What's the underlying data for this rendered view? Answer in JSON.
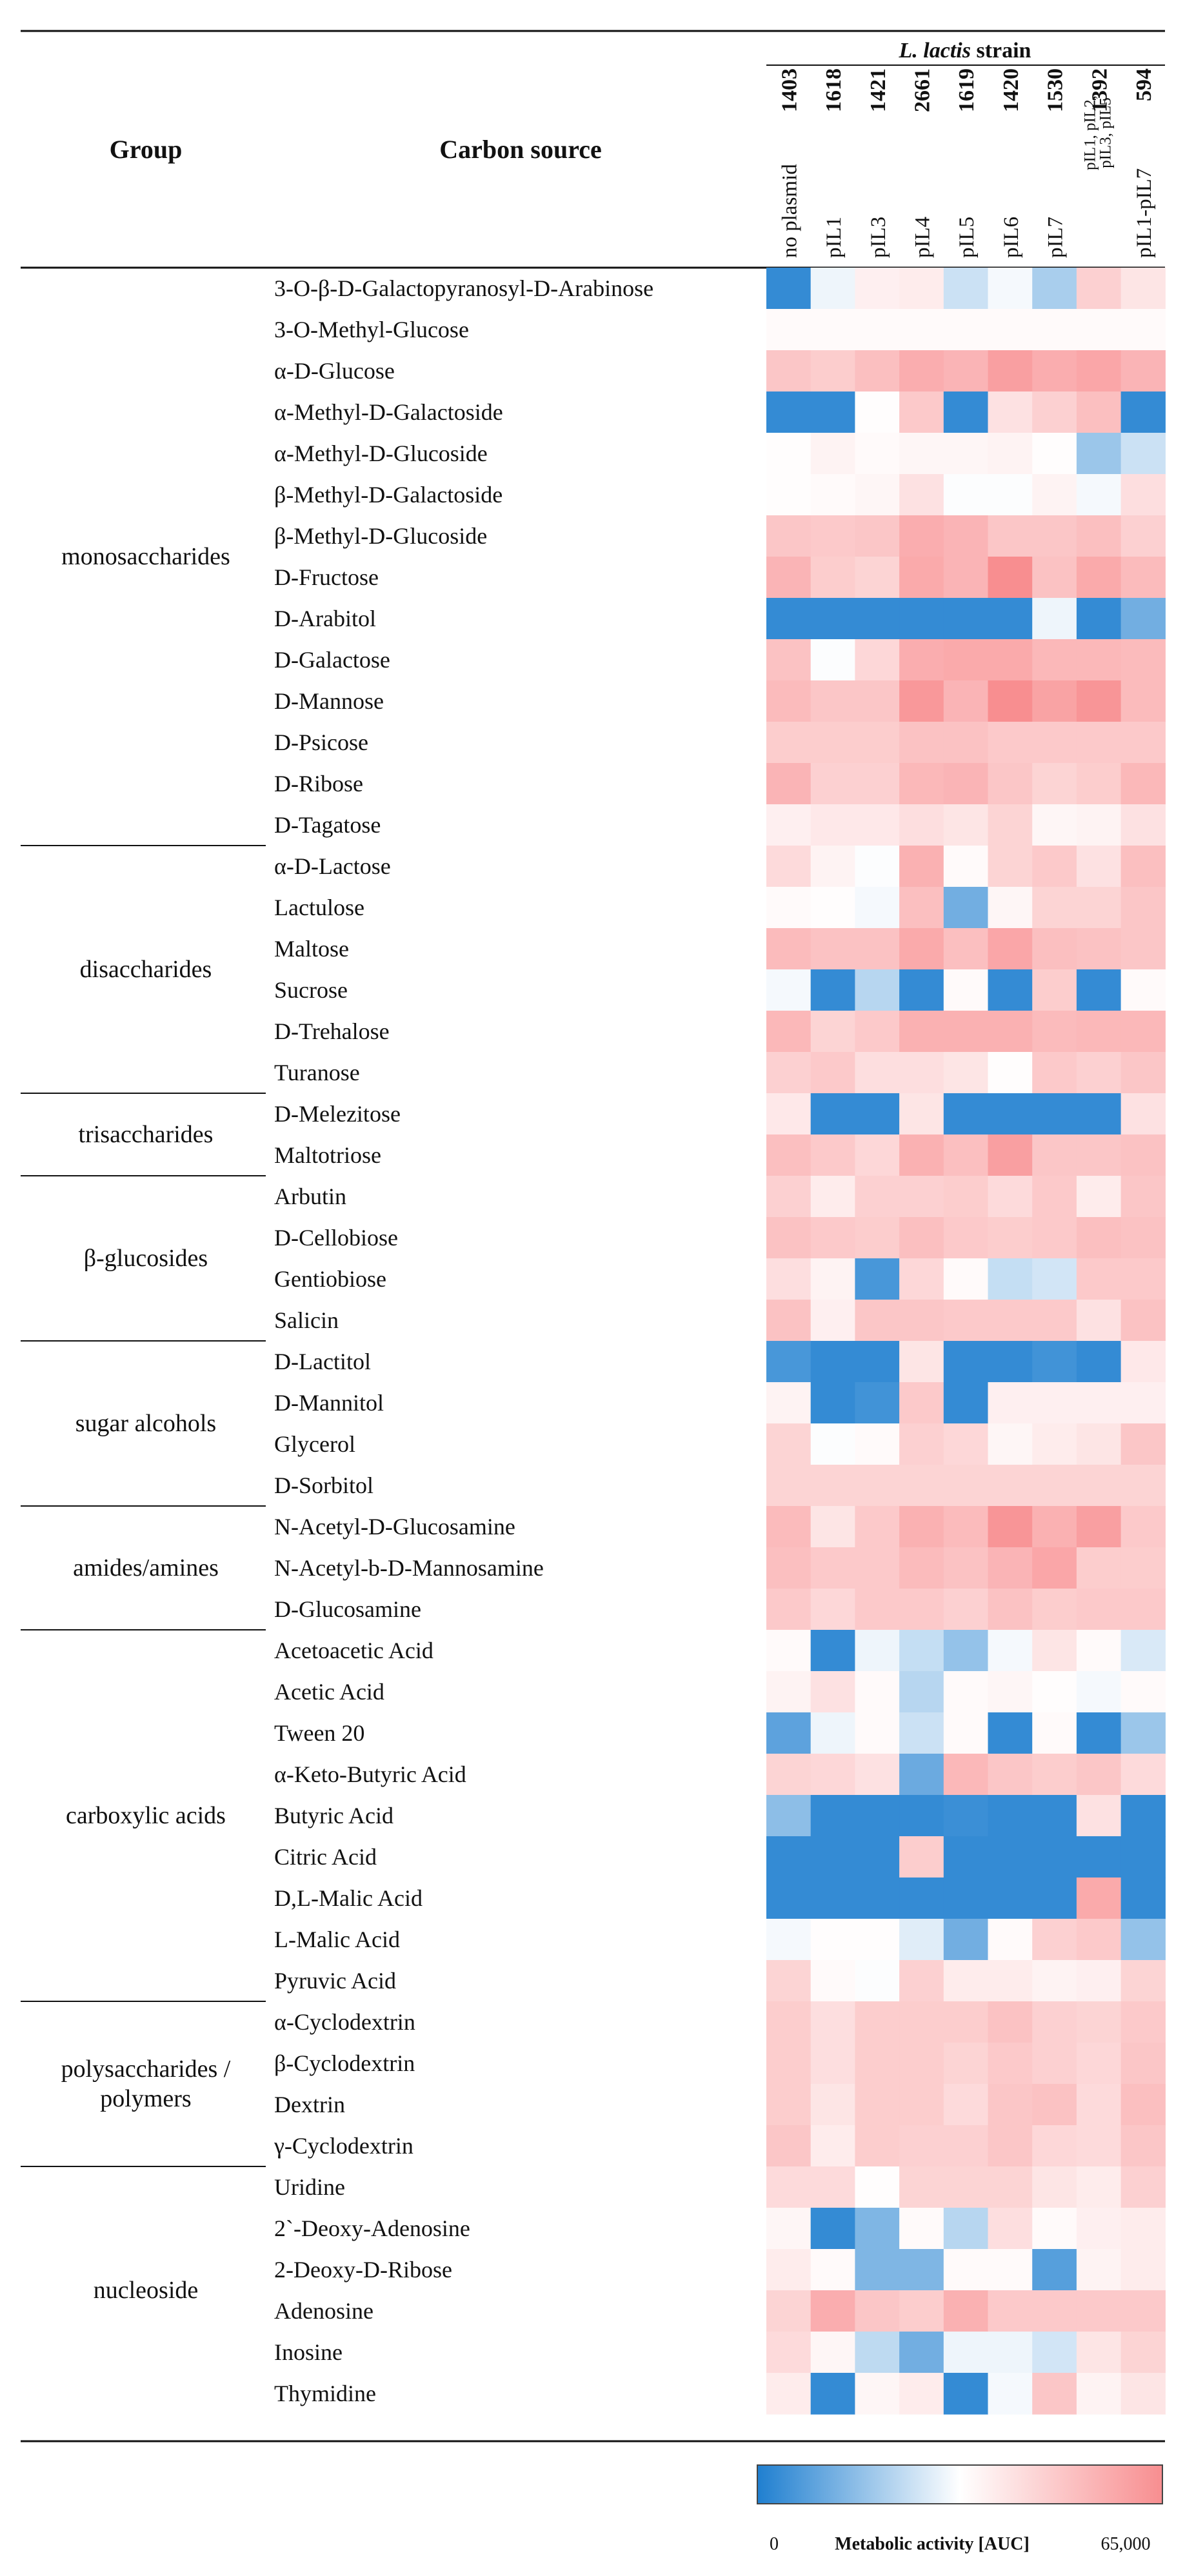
{
  "chart_data": {
    "type": "heatmap",
    "header": {
      "group": "Group",
      "carbon_source": "Carbon source",
      "strain_italic": "L. lactis",
      "strain_suffix": " strain"
    },
    "strains": [
      {
        "id": "1403",
        "plasmid": "no plasmid",
        "small": false
      },
      {
        "id": "1618",
        "plasmid": "pIL1",
        "small": false
      },
      {
        "id": "1421",
        "plasmid": "pIL3",
        "small": false
      },
      {
        "id": "2661",
        "plasmid": "pIL4",
        "small": false
      },
      {
        "id": "1619",
        "plasmid": "pIL5",
        "small": false
      },
      {
        "id": "1420",
        "plasmid": "pIL6",
        "small": false
      },
      {
        "id": "1530",
        "plasmid": "pIL7",
        "small": false
      },
      {
        "id": "1392",
        "plasmid": "pIL1, pIL2, pIL3, pIL5",
        "small": true
      },
      {
        "id": "594",
        "plasmid": "pIL1-pIL7",
        "small": false
      }
    ],
    "groups": [
      {
        "name": "monosaccharides",
        "rows": 14
      },
      {
        "name": "disaccharides",
        "rows": 6
      },
      {
        "name": "trisaccharides",
        "rows": 2
      },
      {
        "name": "β-glucosides",
        "rows": 4
      },
      {
        "name": "sugar alcohols",
        "rows": 4
      },
      {
        "name": "amides/amines",
        "rows": 3
      },
      {
        "name": "carboxylic acids",
        "rows": 9
      },
      {
        "name": "polysaccharides /\npolymers",
        "rows": 4
      },
      {
        "name": "nucleoside",
        "rows": 6
      }
    ],
    "carbon_sources": [
      "3-O-β-D-Galactopyranosyl-D-Arabinose",
      "3-O-Methyl-Glucose",
      "α-D-Glucose",
      "α-Methyl-D-Galactoside",
      "α-Methyl-D-Glucoside",
      "β-Methyl-D-Galactoside",
      "β-Methyl-D-Glucoside",
      "D-Fructose",
      "D-Arabitol",
      "D-Galactose",
      "D-Mannose",
      "D-Psicose",
      "D-Ribose",
      "D-Tagatose",
      "α-D-Lactose",
      "Lactulose",
      "Maltose",
      "Sucrose",
      "D-Trehalose",
      "Turanose",
      "D-Melezitose",
      "Maltotriose",
      "Arbutin",
      "D-Cellobiose",
      "Gentiobiose",
      "Salicin",
      "D-Lactitol",
      "D-Mannitol",
      "Glycerol",
      "D-Sorbitol",
      "N-Acetyl-D-Glucosamine",
      "N-Acetyl-b-D-Mannosamine",
      "D-Glucosamine",
      "Acetoacetic Acid",
      "Acetic Acid",
      "Tween 20",
      "α-Keto-Butyric Acid",
      "Butyric Acid",
      "Citric Acid",
      "D,L-Malic Acid",
      "L-Malic Acid",
      "Pyruvic Acid",
      "α-Cyclodextrin",
      "β-Cyclodextrin",
      "Dextrin",
      "γ-Cyclodextrin",
      "Uridine",
      "2`-Deoxy-Adenosine",
      "2-Deoxy-D-Ribose",
      "Adenosine",
      "Inosine",
      "Thymidine"
    ],
    "values": [
      [
        3000,
        30000,
        37000,
        38000,
        25000,
        31000,
        20000,
        46000,
        40000
      ],
      [
        34000,
        34000,
        34000,
        34000,
        34000,
        34000,
        34000,
        34000,
        34000
      ],
      [
        49000,
        47000,
        51000,
        56000,
        54000,
        60000,
        56000,
        58000,
        54000
      ],
      [
        3000,
        3000,
        33000,
        48000,
        3000,
        41000,
        46000,
        51000,
        3000
      ],
      [
        33000,
        36000,
        34000,
        35000,
        35000,
        36000,
        33000,
        18000,
        25000
      ],
      [
        33000,
        34000,
        35000,
        41000,
        32000,
        32000,
        36000,
        31000,
        42000
      ],
      [
        49000,
        48000,
        49000,
        56000,
        54000,
        49000,
        49000,
        51000,
        46000
      ],
      [
        54000,
        47000,
        45000,
        57000,
        54000,
        65000,
        50000,
        57000,
        52000
      ],
      [
        3000,
        3000,
        3000,
        3000,
        3000,
        3000,
        30000,
        3000,
        12000
      ],
      [
        50000,
        32000,
        44000,
        56000,
        57000,
        57000,
        53000,
        53000,
        52000
      ],
      [
        52000,
        49000,
        49000,
        62000,
        54000,
        68000,
        59000,
        63000,
        52000
      ],
      [
        47000,
        47000,
        47000,
        50000,
        50000,
        48000,
        48000,
        48000,
        48000
      ],
      [
        54000,
        46000,
        46000,
        53000,
        54000,
        49000,
        45000,
        47000,
        53000
      ],
      [
        37000,
        39000,
        39000,
        42000,
        40000,
        45000,
        35000,
        36000,
        41000
      ],
      [
        43000,
        36000,
        32000,
        55000,
        34000,
        45000,
        48000,
        41000,
        51000
      ],
      [
        34000,
        33000,
        31000,
        51000,
        12000,
        35000,
        45000,
        45000,
        49000
      ],
      [
        52000,
        50000,
        50000,
        57000,
        51000,
        58000,
        51000,
        50000,
        49000
      ],
      [
        31000,
        3000,
        22000,
        3000,
        34000,
        3000,
        47000,
        3000,
        34000
      ],
      [
        53000,
        45000,
        48000,
        55000,
        55000,
        55000,
        52000,
        53000,
        53000
      ],
      [
        46000,
        48000,
        42000,
        42000,
        40000,
        33000,
        48000,
        46000,
        49000
      ],
      [
        39000,
        3000,
        3000,
        40000,
        3000,
        3000,
        3000,
        3000,
        41000
      ],
      [
        51000,
        48000,
        44000,
        55000,
        51000,
        60000,
        49000,
        49000,
        50000
      ],
      [
        46000,
        38000,
        46000,
        46000,
        47000,
        43000,
        48000,
        38000,
        49000
      ],
      [
        50000,
        48000,
        47000,
        51000,
        48000,
        47000,
        48000,
        51000,
        50000
      ],
      [
        42000,
        36000,
        6000,
        44000,
        34000,
        24000,
        26000,
        48000,
        48000
      ],
      [
        50000,
        37000,
        49000,
        49000,
        48000,
        48000,
        48000,
        41000,
        50000
      ],
      [
        6000,
        3000,
        3000,
        40000,
        3000,
        3000,
        5000,
        3000,
        39000
      ],
      [
        36000,
        3000,
        5000,
        48000,
        3000,
        37000,
        37000,
        37000,
        37000
      ],
      [
        45000,
        32000,
        34000,
        46000,
        44000,
        35000,
        38000,
        40000,
        49000
      ],
      [
        45000,
        45000,
        45000,
        45000,
        45000,
        45000,
        45000,
        45000,
        45000
      ],
      [
        52000,
        40000,
        48000,
        55000,
        52000,
        63000,
        55000,
        60000,
        48000
      ],
      [
        51000,
        48000,
        48000,
        52000,
        50000,
        54000,
        58000,
        47000,
        47000
      ],
      [
        48000,
        44000,
        48000,
        48000,
        46000,
        50000,
        47000,
        48000,
        48000
      ],
      [
        34000,
        3000,
        30000,
        24000,
        17000,
        31000,
        40000,
        34000,
        27000
      ],
      [
        36000,
        41000,
        34000,
        22000,
        34000,
        35000,
        33000,
        31000,
        34000
      ],
      [
        9000,
        30000,
        34000,
        25000,
        34000,
        3000,
        34000,
        3000,
        18000
      ],
      [
        45000,
        44000,
        41000,
        11000,
        53000,
        49000,
        47000,
        49000,
        43000
      ],
      [
        16000,
        3000,
        3000,
        3000,
        4000,
        3000,
        3000,
        41000,
        3000
      ],
      [
        3000,
        3000,
        3000,
        47000,
        3000,
        3000,
        3000,
        3000,
        3000
      ],
      [
        3000,
        3000,
        3000,
        3000,
        3000,
        3000,
        3000,
        57000,
        3000
      ],
      [
        31000,
        33000,
        33000,
        28000,
        12000,
        34000,
        46000,
        48000,
        17000
      ],
      [
        45000,
        34000,
        32000,
        46000,
        38000,
        38000,
        36000,
        37000,
        45000
      ],
      [
        47000,
        42000,
        47000,
        47000,
        47000,
        50000,
        46000,
        45000,
        48000
      ],
      [
        47000,
        42000,
        47000,
        47000,
        45000,
        48000,
        46000,
        44000,
        49000
      ],
      [
        47000,
        40000,
        47000,
        47000,
        43000,
        49000,
        50000,
        43000,
        51000
      ],
      [
        49000,
        38000,
        47000,
        46000,
        46000,
        49000,
        44000,
        43000,
        49000
      ],
      [
        43000,
        43000,
        33000,
        45000,
        45000,
        45000,
        40000,
        38000,
        46000
      ],
      [
        35000,
        3000,
        14000,
        34000,
        22000,
        42000,
        34000,
        37000,
        38000
      ],
      [
        38000,
        34000,
        14000,
        14000,
        34000,
        34000,
        8000,
        36000,
        38000
      ],
      [
        45000,
        56000,
        49000,
        47000,
        55000,
        48000,
        48000,
        48000,
        48000
      ],
      [
        43000,
        35000,
        23000,
        12000,
        30000,
        30000,
        26000,
        40000,
        45000
      ],
      [
        38000,
        3000,
        35000,
        38000,
        3000,
        31000,
        49000,
        36000,
        40000
      ]
    ],
    "legend": {
      "min_label": "0",
      "max_label": "65,000",
      "title": "Metabolic activity [AUC]",
      "min": 0,
      "max": 65000,
      "low_color": "#1f7fd0",
      "mid_color": "#ffffff",
      "high_color": "#f88e90"
    }
  }
}
